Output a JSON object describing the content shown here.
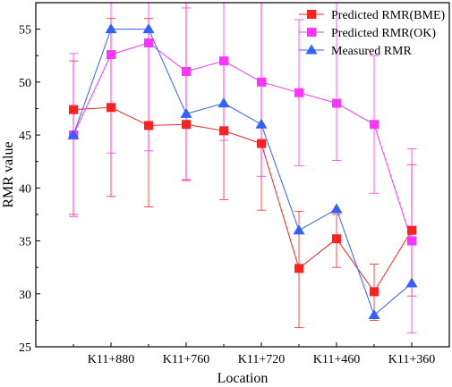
{
  "chart_data": {
    "type": "line",
    "xlabel": "Location",
    "ylabel": "RMR value",
    "ylim": [
      25,
      57.5
    ],
    "yticks": [
      25,
      30,
      35,
      40,
      45,
      50,
      55
    ],
    "x_index_range": [
      0,
      11
    ],
    "xtick_positions": [
      2,
      4,
      6,
      8,
      10
    ],
    "xtick_labels": [
      "K11+880",
      "K11+760",
      "K11+720",
      "K11+460",
      "K11+360"
    ],
    "x": [
      1,
      2,
      3,
      4,
      5,
      6,
      7,
      8,
      9,
      10
    ],
    "legend_position": "top-right",
    "series": [
      {
        "name": "Predicted RMR(BME)",
        "color": "#ff2020",
        "marker": "square",
        "values": [
          47.4,
          47.6,
          45.9,
          46.0,
          45.4,
          44.2,
          32.4,
          35.2,
          30.2,
          36.0
        ],
        "error_low": [
          37.5,
          39.2,
          38.2,
          40.7,
          38.9,
          37.9,
          26.8,
          32.5,
          27.5,
          29.8
        ],
        "error_high": [
          52.0,
          56.0,
          56.0,
          57.5,
          52.0,
          57.5,
          37.8,
          37.5,
          32.8,
          42.2
        ]
      },
      {
        "name": "Predicted RMR(OK)",
        "color": "#ff33ff",
        "marker": "square",
        "values": [
          45.0,
          52.6,
          53.7,
          51.0,
          52.0,
          50.0,
          49.0,
          48.0,
          46.0,
          35.0
        ],
        "error_low": [
          37.3,
          43.3,
          43.5,
          40.8,
          44.5,
          41.1,
          42.1,
          42.6,
          39.5,
          26.3
        ],
        "error_high": [
          52.7,
          57.5,
          57.5,
          57.0,
          57.5,
          57.5,
          55.9,
          57.5,
          52.5,
          43.7
        ]
      },
      {
        "name": "Measured RMR",
        "color": "#3060ff",
        "marker": "triangle",
        "values": [
          45.0,
          55.0,
          55.0,
          47.0,
          48.0,
          46.0,
          36.0,
          38.0,
          28.0,
          31.0
        ]
      }
    ]
  }
}
